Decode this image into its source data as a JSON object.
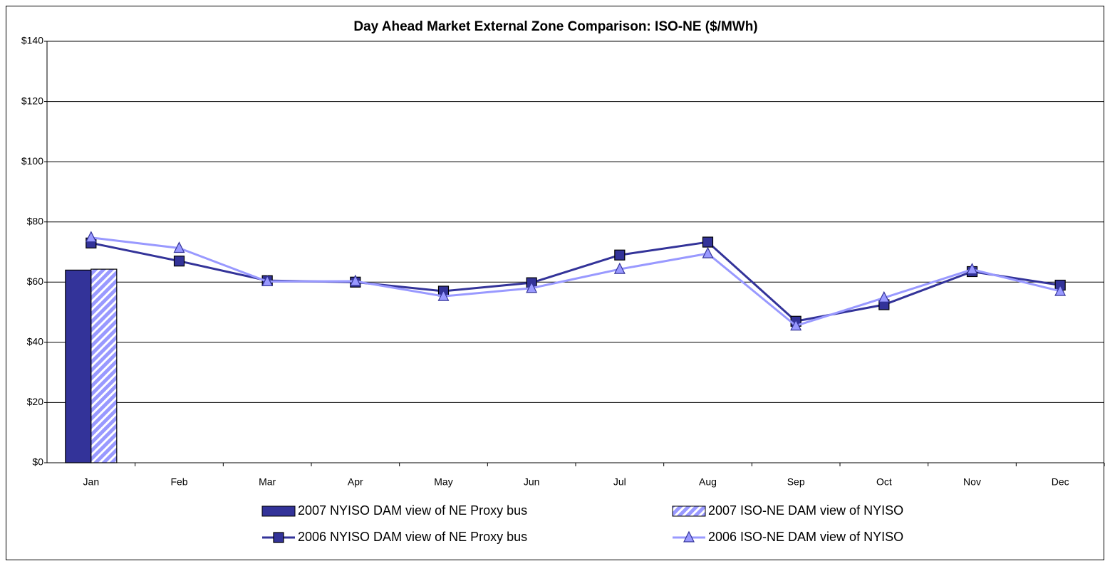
{
  "chart_data": {
    "type": "combo",
    "title": "Day Ahead Market External Zone Comparison: ISO-NE ($/MWh)",
    "categories": [
      "Jan",
      "Feb",
      "Mar",
      "Apr",
      "May",
      "Jun",
      "Jul",
      "Aug",
      "Sep",
      "Oct",
      "Nov",
      "Dec"
    ],
    "ylim": [
      0,
      140
    ],
    "yticks": [
      {
        "value": 0,
        "label": "$0"
      },
      {
        "value": 20,
        "label": "$20"
      },
      {
        "value": 40,
        "label": "$40"
      },
      {
        "value": 60,
        "label": "$60"
      },
      {
        "value": 80,
        "label": "$80"
      },
      {
        "value": 100,
        "label": "$100"
      },
      {
        "value": 120,
        "label": "$120"
      },
      {
        "value": 140,
        "label": "$140"
      }
    ],
    "grid": true,
    "legend": "bottom",
    "series": [
      {
        "name": "2007 NYISO DAM view of NE Proxy bus",
        "type": "bar",
        "color": "#333399",
        "values": [
          64,
          null,
          null,
          null,
          null,
          null,
          null,
          null,
          null,
          null,
          null,
          null
        ]
      },
      {
        "name": "2007 ISO-NE DAM view of NYISO",
        "type": "bar",
        "color": "#9999ff",
        "pattern": "diagonal",
        "values": [
          64.3,
          null,
          null,
          null,
          null,
          null,
          null,
          null,
          null,
          null,
          null,
          null
        ]
      },
      {
        "name": "2006 NYISO DAM view of NE Proxy bus",
        "type": "line",
        "color": "#333399",
        "marker": "square",
        "values": [
          73,
          67,
          60.5,
          60,
          57,
          59.8,
          69,
          73.3,
          47,
          52.5,
          63.5,
          59
        ]
      },
      {
        "name": "2006 ISO-NE DAM view of NYISO",
        "type": "line",
        "color": "#9999ff",
        "marker": "triangle",
        "values": [
          74.8,
          71.3,
          60.2,
          60.3,
          55.3,
          58,
          64.3,
          69.5,
          45.5,
          54.8,
          64.2,
          57
        ]
      }
    ]
  }
}
